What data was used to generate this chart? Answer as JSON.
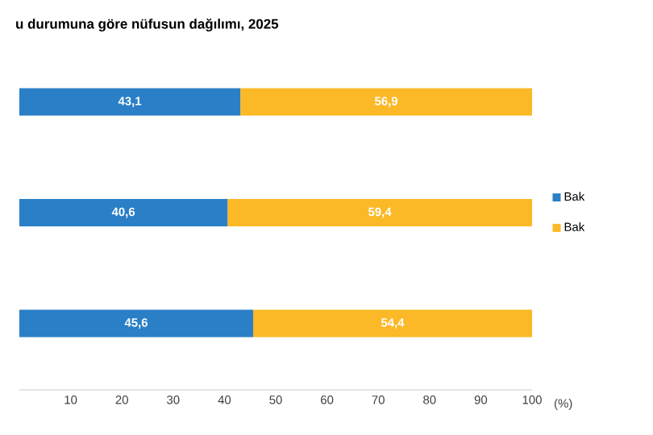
{
  "chart_data": {
    "type": "bar",
    "orientation": "horizontal",
    "stacked": true,
    "title": "u durumuna göre nüfusun dağılımı, 2025",
    "xlabel": "(%)",
    "categories": [
      null,
      null,
      null
    ],
    "series": [
      {
        "name": "Bak",
        "color": "#2a7fc6",
        "values": [
          43.1,
          40.6,
          45.6
        ],
        "value_labels": [
          "43,1",
          "40,6",
          "45,6"
        ]
      },
      {
        "name": "Bak",
        "color": "#fbb927",
        "values": [
          56.9,
          59.4,
          54.4
        ],
        "value_labels": [
          "56,9",
          "59,4",
          "54,4"
        ]
      }
    ],
    "xlim": [
      0,
      100
    ],
    "xticks": [
      10,
      20,
      30,
      40,
      50,
      60,
      70,
      80,
      90,
      100
    ],
    "legend": "right",
    "grid": false
  }
}
